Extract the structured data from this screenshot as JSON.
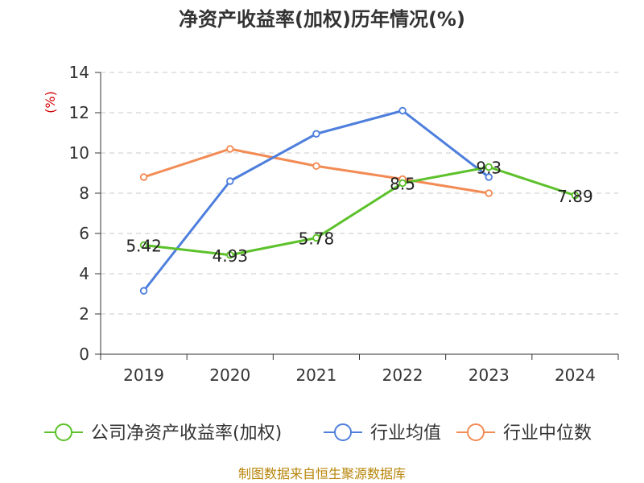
{
  "chart_data": {
    "type": "line",
    "title": "净资产收益率(加权)历年情况(%)",
    "ylabel": "(%)",
    "xlabel": "",
    "categories": [
      "2019",
      "2020",
      "2021",
      "2022",
      "2023",
      "2024"
    ],
    "ylim": [
      0,
      14
    ],
    "yticks": [
      0,
      2,
      4,
      6,
      8,
      10,
      12,
      14
    ],
    "grid": true,
    "legend_position": "bottom",
    "series": [
      {
        "name": "公司净资产收益率(加权)",
        "color": "#5cc12a",
        "values": [
          5.42,
          4.93,
          5.78,
          8.5,
          9.3,
          7.89
        ],
        "labels": [
          "5.42",
          "4.93",
          "5.78",
          "8.5",
          "9.3",
          "7.89"
        ]
      },
      {
        "name": "行业均值",
        "color": "#4e7fdc",
        "values": [
          3.15,
          8.6,
          10.95,
          12.1,
          8.8,
          null
        ]
      },
      {
        "name": "行业中位数",
        "color": "#f28b54",
        "values": [
          8.8,
          10.2,
          9.35,
          8.7,
          8.0,
          null
        ]
      }
    ],
    "unit_color": "#d40000"
  },
  "footer": {
    "source": "制图数据来自恒生聚源数据库",
    "color": "#b8860b"
  }
}
